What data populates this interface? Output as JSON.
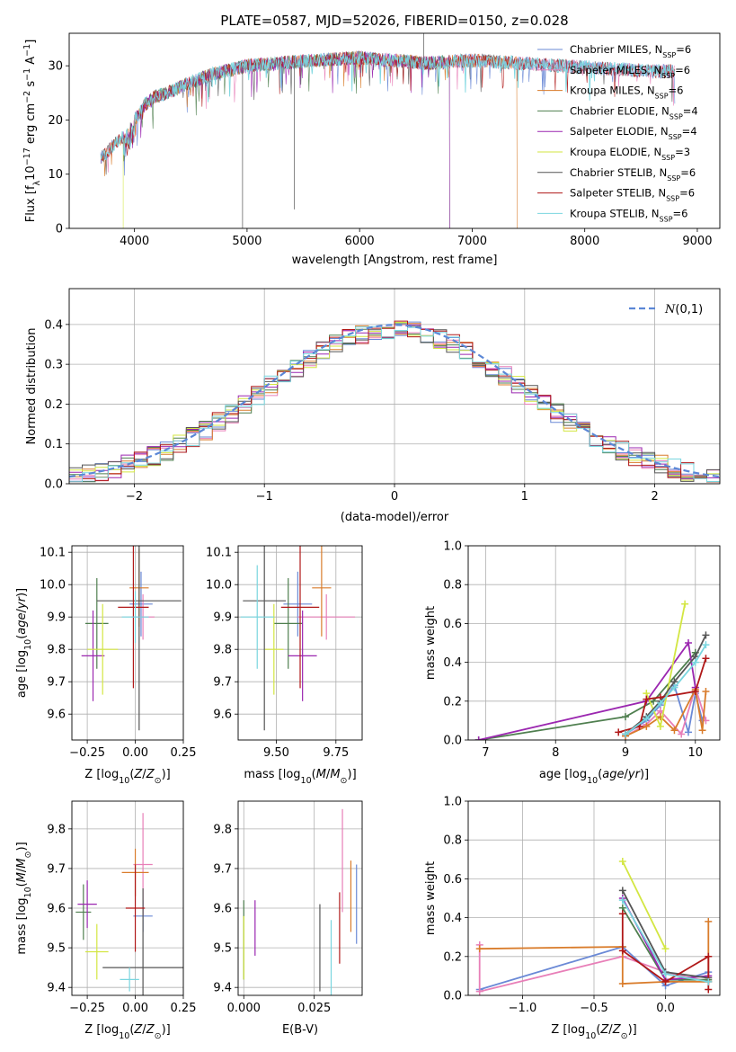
{
  "colors": [
    "#6a89d6",
    "#e87fb8",
    "#d97c2b",
    "#4f7f4f",
    "#9b27b0",
    "#d3e642",
    "#555555",
    "#b01818",
    "#79d6df"
  ],
  "chart_data": [
    {
      "id": "spectrum",
      "type": "line",
      "title": "PLATE=0587, MJD=52026, FIBERID=0150, z=0.028",
      "xlabel": "wavelength [Angstrom, rest frame]",
      "ylabel": "Flux [fλ10⁻¹⁷ erg cm⁻² s⁻¹ A⁻¹]",
      "xlim": [
        3420,
        9200
      ],
      "ylim": [
        0,
        36
      ],
      "xticks": [
        4000,
        5000,
        6000,
        7000,
        8000,
        9000
      ],
      "yticks": [
        0,
        10,
        20,
        30
      ],
      "continuum": {
        "x": [
          3700,
          3800,
          3900,
          4000,
          4100,
          4200,
          4300,
          4400,
          4500,
          4700,
          5000,
          5300,
          5600,
          6000,
          6300,
          6600,
          7000,
          7400,
          7800,
          8200,
          8600,
          8800
        ],
        "y": [
          13,
          15,
          17,
          20,
          23,
          24.5,
          25,
          26,
          27,
          28.5,
          30,
          30.5,
          31,
          31.5,
          31,
          30.5,
          31,
          30.5,
          30,
          29.5,
          29,
          29
        ]
      },
      "legend": [
        {
          "label": "Chabrier MILES, N",
          "sub": "SSP",
          "tail": "=6"
        },
        {
          "label": "Salpeter MILES, N",
          "sub": "SSP",
          "tail": "=6"
        },
        {
          "label": "Kroupa MILES, N",
          "sub": "SSP",
          "tail": "=6"
        },
        {
          "label": "Chabrier ELODIE, N",
          "sub": "SSP",
          "tail": "=4"
        },
        {
          "label": "Salpeter ELODIE, N",
          "sub": "SSP",
          "tail": "=4"
        },
        {
          "label": "Kroupa ELODIE, N",
          "sub": "SSP",
          "tail": "=3"
        },
        {
          "label": "Chabrier STELIB, N",
          "sub": "SSP",
          "tail": "=6"
        },
        {
          "label": "Salpeter STELIB, N",
          "sub": "SSP",
          "tail": "=6"
        },
        {
          "label": "Kroupa STELIB, N",
          "sub": "SSP",
          "tail": "=6"
        }
      ]
    },
    {
      "id": "residuals",
      "type": "histogram",
      "xlabel": "(data-model)/error",
      "ylabel": "Normed distribution",
      "xlim": [
        -2.5,
        2.5
      ],
      "ylim": [
        0,
        0.49
      ],
      "xticks": [
        -2,
        -1,
        0,
        1,
        2
      ],
      "yticks": [
        0.0,
        0.1,
        0.2,
        0.3,
        0.4
      ],
      "grid": true,
      "bin_width": 0.1,
      "legend_label": "N(0,1)"
    },
    {
      "id": "age-vs-Z",
      "type": "errorbar",
      "xlabel": "Z [log10(Z/Z⊙)]",
      "ylabel": "age  [log10(age/yr)]",
      "xlim": [
        -0.33,
        0.25
      ],
      "ylim": [
        9.52,
        10.12
      ],
      "xticks": [
        -0.25,
        0.0,
        0.25
      ],
      "xticklabels": [
        "−0.25",
        "0.00",
        "0.25"
      ],
      "yticks": [
        9.6,
        9.7,
        9.8,
        9.9,
        10.0,
        10.1
      ],
      "points": [
        {
          "c": 0,
          "x": 0.03,
          "y": 9.94,
          "xe": 0.06,
          "ye": 0.1
        },
        {
          "c": 1,
          "x": 0.04,
          "y": 9.9,
          "xe": 0.06,
          "ye": 0.07
        },
        {
          "c": 2,
          "x": 0.02,
          "y": 9.99,
          "xe": 0.05,
          "ye": 0.12
        },
        {
          "c": 3,
          "x": -0.2,
          "y": 9.88,
          "xe": 0.06,
          "ye": 0.14
        },
        {
          "c": 4,
          "x": -0.22,
          "y": 9.78,
          "xe": 0.06,
          "ye": 0.14
        },
        {
          "c": 5,
          "x": -0.17,
          "y": 9.8,
          "xe": 0.08,
          "ye": 0.14
        },
        {
          "c": 6,
          "x": 0.02,
          "y": 9.95,
          "xe": 0.22,
          "ye": 0.4
        },
        {
          "c": 7,
          "x": -0.01,
          "y": 9.93,
          "xe": 0.08,
          "ye": 0.25
        },
        {
          "c": 8,
          "x": 0.0,
          "y": 9.9,
          "xe": 0.07,
          "ye": 0.08
        }
      ]
    },
    {
      "id": "age-vs-mass",
      "type": "errorbar",
      "xlabel": "mass [log10(M/M⊙)]",
      "ylabel": "",
      "xlim": [
        9.34,
        9.86
      ],
      "ylim": [
        9.52,
        10.12
      ],
      "xticks": [
        9.5,
        9.75
      ],
      "xticklabels": [
        "9.50",
        "9.75"
      ],
      "yticks": [
        9.6,
        9.7,
        9.8,
        9.9,
        10.0,
        10.1
      ],
      "points": [
        {
          "c": 0,
          "x": 9.59,
          "y": 9.94,
          "xe": 0.06,
          "ye": 0.1
        },
        {
          "c": 1,
          "x": 9.71,
          "y": 9.9,
          "xe": 0.12,
          "ye": 0.07
        },
        {
          "c": 2,
          "x": 9.69,
          "y": 9.99,
          "xe": 0.04,
          "ye": 0.15
        },
        {
          "c": 3,
          "x": 9.55,
          "y": 9.88,
          "xe": 0.06,
          "ye": 0.14
        },
        {
          "c": 4,
          "x": 9.61,
          "y": 9.78,
          "xe": 0.06,
          "ye": 0.14
        },
        {
          "c": 5,
          "x": 9.49,
          "y": 9.8,
          "xe": 0.04,
          "ye": 0.14
        },
        {
          "c": 6,
          "x": 9.45,
          "y": 9.95,
          "xe": 0.09,
          "ye": 0.4
        },
        {
          "c": 7,
          "x": 9.6,
          "y": 9.93,
          "xe": 0.08,
          "ye": 0.25
        },
        {
          "c": 8,
          "x": 9.42,
          "y": 9.9,
          "xe": 0.07,
          "ye": 0.16
        }
      ]
    },
    {
      "id": "weight-vs-age",
      "type": "line",
      "xlabel": "age  [log10(age/yr)]",
      "ylabel": "mass weight",
      "xlim": [
        6.75,
        10.35
      ],
      "ylim": [
        0,
        1.0
      ],
      "xticks": [
        7,
        8,
        9,
        10
      ],
      "yticks": [
        0.0,
        0.2,
        0.4,
        0.6,
        0.8,
        1.0
      ],
      "yticklabels": [
        "0.0",
        "0.2",
        "0.4",
        "0.6",
        "0.8",
        "1.0"
      ],
      "series": [
        {
          "c": 0,
          "x": [
            9.0,
            9.3,
            9.5,
            9.7,
            9.9,
            10.0,
            10.1
          ],
          "y": [
            0.03,
            0.1,
            0.18,
            0.28,
            0.04,
            0.24,
            0.1
          ]
        },
        {
          "c": 1,
          "x": [
            9.0,
            9.3,
            9.5,
            9.8,
            10.0,
            10.15
          ],
          "y": [
            0.02,
            0.08,
            0.15,
            0.03,
            0.27,
            0.1
          ]
        },
        {
          "c": 2,
          "x": [
            9.0,
            9.3,
            9.5,
            9.7,
            10.0,
            10.1,
            10.15
          ],
          "y": [
            0.02,
            0.07,
            0.12,
            0.05,
            0.26,
            0.05,
            0.25
          ]
        },
        {
          "c": 3,
          "x": [
            6.9,
            9.0,
            9.4,
            10.0
          ],
          "y": [
            0.0,
            0.12,
            0.2,
            0.45
          ]
        },
        {
          "c": 4,
          "x": [
            6.9,
            9.3,
            9.9,
            10.0
          ],
          "y": [
            0.0,
            0.2,
            0.5,
            0.27
          ]
        },
        {
          "c": 5,
          "x": [
            9.3,
            9.5,
            9.85
          ],
          "y": [
            0.24,
            0.07,
            0.7
          ]
        },
        {
          "c": 6,
          "x": [
            9.0,
            9.3,
            9.5,
            9.7,
            10.0,
            10.15
          ],
          "y": [
            0.03,
            0.12,
            0.2,
            0.3,
            0.43,
            0.54
          ]
        },
        {
          "c": 7,
          "x": [
            8.9,
            9.2,
            9.3,
            9.5,
            10.0,
            10.15
          ],
          "y": [
            0.04,
            0.07,
            0.21,
            0.22,
            0.25,
            0.42
          ]
        },
        {
          "c": 8,
          "x": [
            9.0,
            9.3,
            9.5,
            9.7,
            10.0,
            10.15
          ],
          "y": [
            0.03,
            0.11,
            0.19,
            0.27,
            0.4,
            0.49
          ]
        }
      ]
    },
    {
      "id": "mass-vs-Z",
      "type": "errorbar",
      "xlabel": "Z [log10(Z/Z⊙)]",
      "ylabel": "mass [log10(M/M⊙)]",
      "xlim": [
        -0.33,
        0.25
      ],
      "ylim": [
        9.38,
        9.87
      ],
      "xticks": [
        -0.25,
        0.0,
        0.25
      ],
      "xticklabels": [
        "−0.25",
        "0.00",
        "0.25"
      ],
      "yticks": [
        9.4,
        9.5,
        9.6,
        9.7,
        9.8
      ],
      "points": [
        {
          "c": 0,
          "x": 0.04,
          "y": 9.58,
          "xe": 0.05,
          "ye": 0.04
        },
        {
          "c": 1,
          "x": 0.04,
          "y": 9.71,
          "xe": 0.05,
          "ye": 0.13
        },
        {
          "c": 2,
          "x": 0.0,
          "y": 9.69,
          "xe": 0.07,
          "ye": 0.06
        },
        {
          "c": 3,
          "x": -0.27,
          "y": 9.59,
          "xe": 0.04,
          "ye": 0.07
        },
        {
          "c": 4,
          "x": -0.25,
          "y": 9.61,
          "xe": 0.05,
          "ye": 0.06
        },
        {
          "c": 5,
          "x": -0.2,
          "y": 9.49,
          "xe": 0.06,
          "ye": 0.07
        },
        {
          "c": 6,
          "x": 0.04,
          "y": 9.45,
          "xe": 0.21,
          "ye": 0.2
        },
        {
          "c": 7,
          "x": 0.0,
          "y": 9.6,
          "xe": 0.05,
          "ye": 0.11
        },
        {
          "c": 8,
          "x": -0.03,
          "y": 9.42,
          "xe": 0.05,
          "ye": 0.03
        }
      ]
    },
    {
      "id": "mass-vs-EBV",
      "type": "errorbar",
      "xlabel": "E(B-V)",
      "ylabel": "",
      "xlim": [
        -0.002,
        0.042
      ],
      "ylim": [
        9.38,
        9.87
      ],
      "xticks": [
        0.0,
        0.025
      ],
      "xticklabels": [
        "0.000",
        "0.025"
      ],
      "yticks": [
        9.4,
        9.5,
        9.6,
        9.7,
        9.8
      ],
      "points": [
        {
          "c": 0,
          "x": 0.04,
          "y": 9.61,
          "xe": 0.0,
          "ye": 0.1
        },
        {
          "c": 1,
          "x": 0.035,
          "y": 9.72,
          "xe": 0.0,
          "ye": 0.13
        },
        {
          "c": 2,
          "x": 0.038,
          "y": 9.63,
          "xe": 0.0,
          "ye": 0.09
        },
        {
          "c": 3,
          "x": 0.0,
          "y": 9.52,
          "xe": 0.0,
          "ye": 0.1
        },
        {
          "c": 4,
          "x": 0.004,
          "y": 9.55,
          "xe": 0.0,
          "ye": 0.07
        },
        {
          "c": 5,
          "x": 0.0,
          "y": 9.5,
          "xe": 0.0,
          "ye": 0.08
        },
        {
          "c": 6,
          "x": 0.027,
          "y": 9.5,
          "xe": 0.0,
          "ye": 0.11
        },
        {
          "c": 7,
          "x": 0.034,
          "y": 9.55,
          "xe": 0.0,
          "ye": 0.09
        },
        {
          "c": 8,
          "x": 0.031,
          "y": 9.47,
          "xe": 0.0,
          "ye": 0.1
        }
      ]
    },
    {
      "id": "weight-vs-Z",
      "type": "line",
      "xlabel": "Z [log10(Z/Z⊙)]",
      "ylabel": "mass weight",
      "xlim": [
        -1.38,
        0.38
      ],
      "ylim": [
        0,
        1.0
      ],
      "xticks": [
        -1.0,
        -0.5,
        0.0
      ],
      "xticklabels": [
        "−1.0",
        "−0.5",
        "0.0"
      ],
      "yticks": [
        0.0,
        0.2,
        0.4,
        0.6,
        0.8,
        1.0
      ],
      "yticklabels": [
        "0.0",
        "0.2",
        "0.4",
        "0.6",
        "0.8",
        "1.0"
      ],
      "series": [
        {
          "c": 0,
          "x": [
            -1.3,
            -0.3,
            0.0,
            0.3
          ],
          "y": [
            0.03,
            0.25,
            0.05,
            0.12
          ]
        },
        {
          "c": 1,
          "x": [
            -1.3,
            -1.3,
            -0.3,
            0.0,
            0.3
          ],
          "y": [
            0.26,
            0.02,
            0.2,
            0.12,
            0.07
          ]
        },
        {
          "c": 2,
          "x": [
            -1.3,
            -0.3,
            -0.3,
            0.0,
            0.3,
            0.3
          ],
          "y": [
            0.24,
            0.25,
            0.06,
            0.07,
            0.07,
            0.38
          ]
        },
        {
          "c": 3,
          "x": [
            -0.3,
            0.0,
            0.3
          ],
          "y": [
            0.45,
            0.08,
            0.08
          ]
        },
        {
          "c": 4,
          "x": [
            -0.3,
            0.0,
            0.3
          ],
          "y": [
            0.5,
            0.08,
            0.1
          ]
        },
        {
          "c": 5,
          "x": [
            -0.3,
            0.0
          ],
          "y": [
            0.69,
            0.24
          ]
        },
        {
          "c": 6,
          "x": [
            -0.3,
            0.0,
            0.3
          ],
          "y": [
            0.54,
            0.12,
            0.09
          ]
        },
        {
          "c": 7,
          "x": [
            -0.3,
            -0.3,
            0.0,
            0.3,
            0.3
          ],
          "y": [
            0.42,
            0.23,
            0.07,
            0.2,
            0.03
          ]
        },
        {
          "c": 8,
          "x": [
            -0.3,
            0.0,
            0.3
          ],
          "y": [
            0.49,
            0.11,
            0.07
          ]
        }
      ]
    }
  ]
}
